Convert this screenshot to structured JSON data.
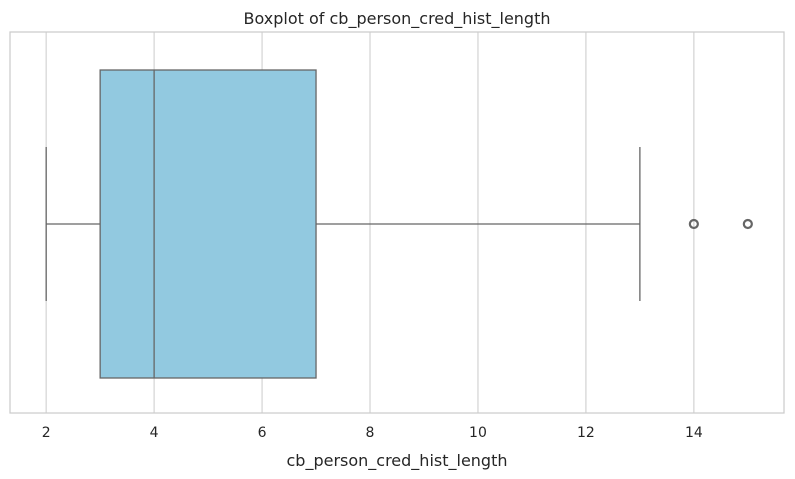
{
  "chart_data": {
    "type": "boxplot",
    "title": "Boxplot of cb_person_cred_hist_length",
    "xlabel": "cb_person_cred_hist_length",
    "ylabel": "",
    "xlim": [
      1.33,
      15.67
    ],
    "xticks": [
      2,
      4,
      6,
      8,
      10,
      12,
      14
    ],
    "xtick_labels": [
      "2",
      "4",
      "6",
      "8",
      "10",
      "12",
      "14"
    ],
    "grid": true,
    "orientation": "horizontal",
    "box": {
      "whisker_low": 2,
      "q1": 3,
      "median": 4,
      "q3": 7,
      "whisker_high": 13,
      "outliers": [
        14,
        15
      ]
    },
    "colors": {
      "box_fill": "#92c9e0",
      "line": "#666666",
      "grid": "#d3d3d3",
      "frame": "#cccccc"
    }
  }
}
